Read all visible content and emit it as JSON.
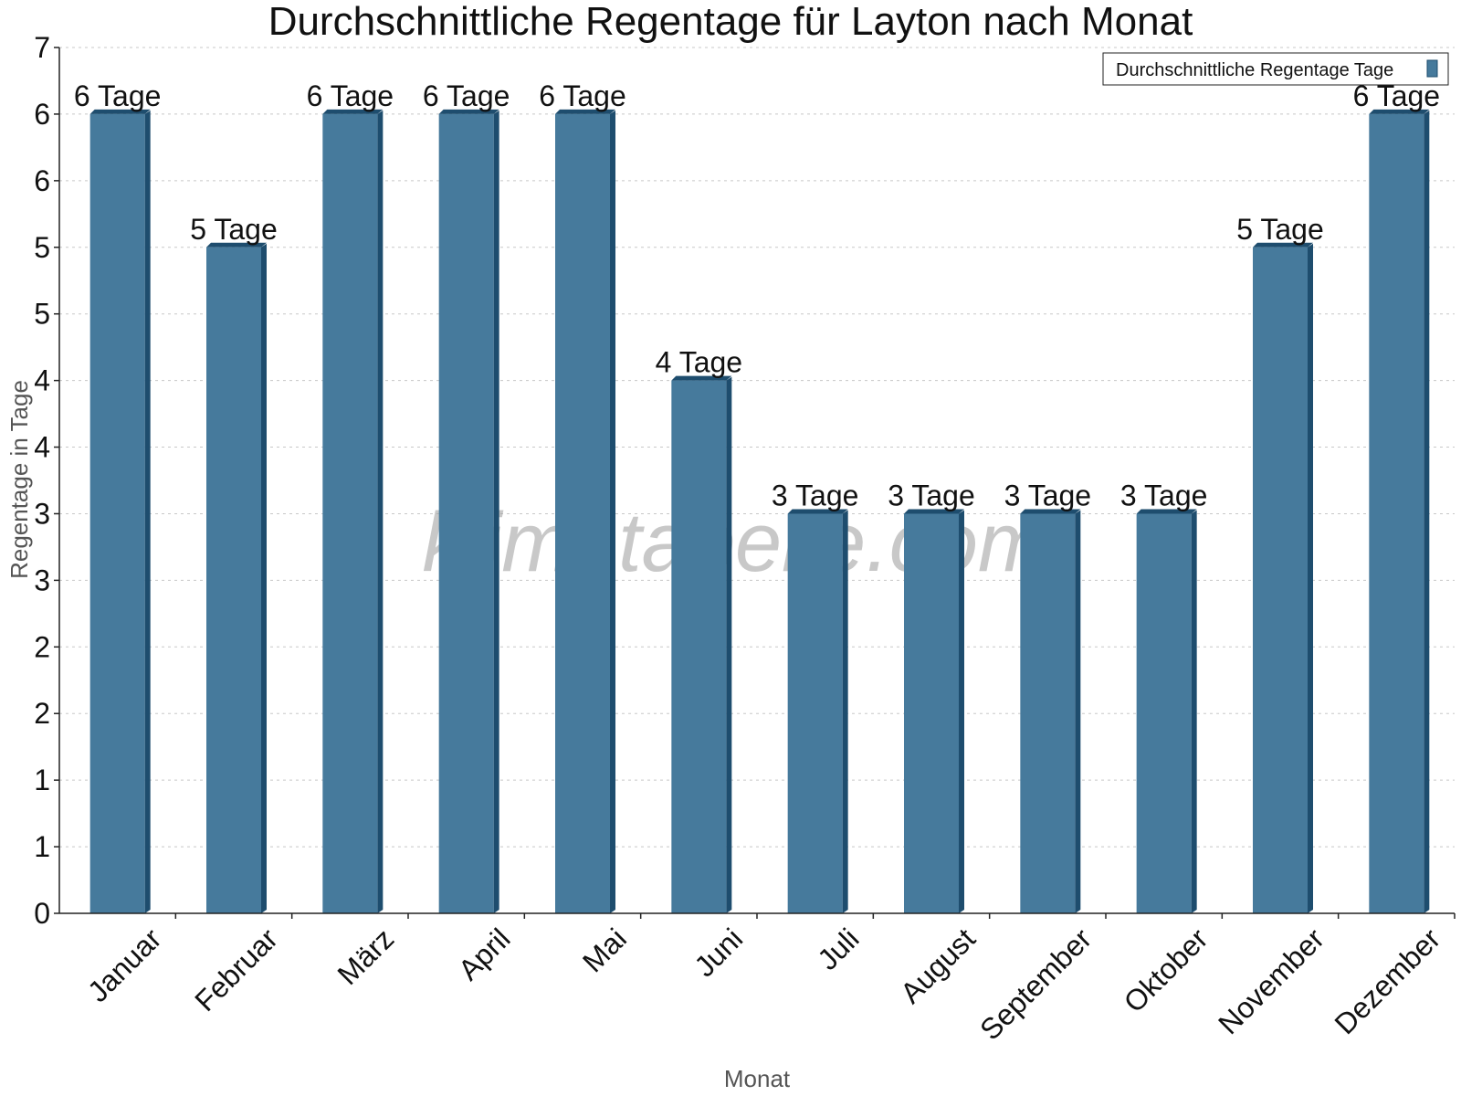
{
  "chart_data": {
    "type": "bar",
    "title": "Durchschnittliche Regentage für Layton nach Monat",
    "xlabel": "Monat",
    "ylabel": "Regentage in Tage",
    "categories": [
      "Januar",
      "Februar",
      "März",
      "April",
      "Mai",
      "Juni",
      "Juli",
      "August",
      "September",
      "Oktober",
      "November",
      "Dezember"
    ],
    "series": [
      {
        "name": "Durchschnittliche Regentage Tage",
        "values": [
          6,
          5,
          6,
          6,
          6,
          4,
          3,
          3,
          3,
          3,
          5,
          6
        ],
        "data_labels": [
          "6 Tage",
          "5 Tage",
          "6 Tage",
          "6 Tage",
          "6 Tage",
          "4 Tage",
          "3 Tage",
          "3 Tage",
          "3 Tage",
          "3 Tage",
          "5 Tage",
          "6 Tage"
        ]
      }
    ],
    "ylim": [
      0,
      6.5
    ],
    "y_ticks": [
      0,
      0.5,
      1,
      1.5,
      2,
      2.5,
      3,
      3.5,
      4,
      4.5,
      5,
      5.5,
      6,
      6.5
    ],
    "y_tick_labels": [
      "0",
      "1",
      "1",
      "2",
      "2",
      "3",
      "3",
      "4",
      "4",
      "5",
      "5",
      "6",
      "6",
      "7"
    ],
    "grid": true,
    "legend_position": "top-right",
    "watermark": "klimatabelle.com",
    "colors": {
      "bar": "#467a9c",
      "bar_side": "#1e4d6e",
      "grid": "#c8c8c8"
    }
  }
}
